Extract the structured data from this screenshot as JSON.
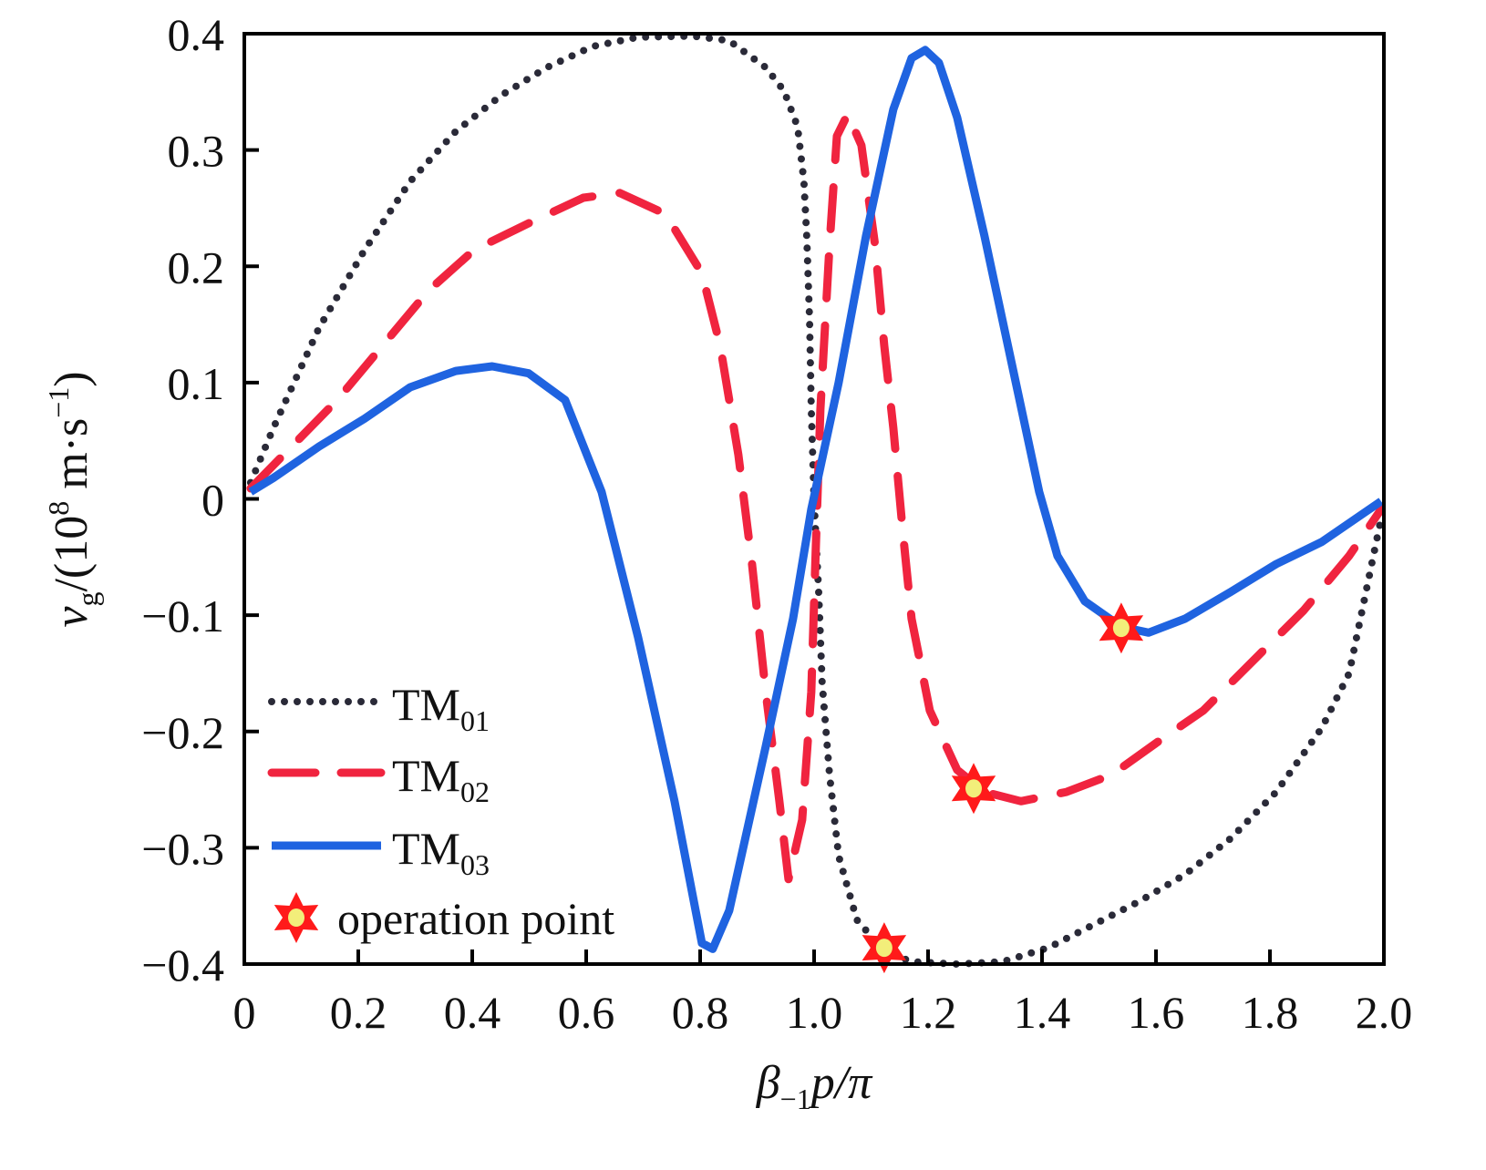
{
  "chart_data": {
    "type": "line",
    "title": "",
    "xlabel_parts": {
      "beta": "β",
      "sub": "−1",
      "rest": "p/π"
    },
    "ylabel_parts": {
      "v": "v",
      "g": "g",
      "mid": "/(10",
      "exp": "8",
      "unit": " m·s",
      "uexp": "−1",
      "close": ")"
    },
    "xlim": [
      0,
      2.0
    ],
    "ylim": [
      -0.4,
      0.4
    ],
    "xticks": [
      "0",
      "0.2",
      "0.4",
      "0.6",
      "0.8",
      "1.0",
      "1.2",
      "1.4",
      "1.6",
      "1.8",
      "2.0"
    ],
    "xtick_values": [
      0,
      0.2,
      0.4,
      0.6,
      0.8,
      1.0,
      1.2,
      1.4,
      1.6,
      1.8,
      2.0
    ],
    "yticks": [
      "0.4",
      "0.3",
      "0.2",
      "0.1",
      "0",
      "−0.1",
      "−0.2",
      "−0.3",
      "−0.4"
    ],
    "ytick_values": [
      0.4,
      0.3,
      0.2,
      0.1,
      0,
      -0.1,
      -0.2,
      -0.3,
      -0.4
    ],
    "grid": false,
    "legend_position": "bottom-left",
    "series": [
      {
        "name": "TM",
        "sub": "01",
        "style": "dotted",
        "color": "#2a2a38",
        "x": [
          0.011,
          0.051,
          0.131,
          0.211,
          0.291,
          0.371,
          0.451,
          0.531,
          0.611,
          0.691,
          0.787,
          0.851,
          0.915,
          0.947,
          0.971,
          0.982,
          0.987,
          0.992,
          0.995,
          1.0,
          1.008,
          1.014,
          1.027,
          1.043,
          1.075,
          1.123,
          1.171,
          1.251,
          1.331,
          1.411,
          1.491,
          1.571,
          1.651,
          1.731,
          1.811,
          1.891,
          1.939,
          1.995
        ],
        "y": [
          0.014,
          0.061,
          0.147,
          0.214,
          0.273,
          0.316,
          0.347,
          0.371,
          0.389,
          0.397,
          0.398,
          0.394,
          0.371,
          0.351,
          0.32,
          0.273,
          0.226,
          0.155,
          0.077,
          -0.002,
          -0.08,
          -0.158,
          -0.237,
          -0.307,
          -0.362,
          -0.389,
          -0.398,
          -0.4,
          -0.398,
          -0.386,
          -0.366,
          -0.346,
          -0.323,
          -0.292,
          -0.252,
          -0.197,
          -0.15,
          -0.017
        ]
      },
      {
        "name": "TM",
        "sub": "02",
        "style": "dashed",
        "color": "#f0243f",
        "x": [
          0.011,
          0.083,
          0.163,
          0.243,
          0.323,
          0.403,
          0.499,
          0.595,
          0.659,
          0.739,
          0.803,
          0.835,
          0.867,
          0.891,
          0.915,
          0.939,
          0.955,
          0.979,
          0.995,
          1.003,
          1.011,
          1.027,
          1.04,
          1.059,
          1.083,
          1.107,
          1.123,
          1.139,
          1.155,
          1.171,
          1.203,
          1.251,
          1.299,
          1.363,
          1.443,
          1.523,
          1.603,
          1.683,
          1.779,
          1.859,
          1.939,
          1.995
        ],
        "y": [
          0.009,
          0.045,
          0.085,
          0.132,
          0.179,
          0.214,
          0.237,
          0.259,
          0.263,
          0.245,
          0.194,
          0.132,
          0.038,
          -0.056,
          -0.166,
          -0.26,
          -0.327,
          -0.276,
          -0.166,
          -0.041,
          0.077,
          0.218,
          0.312,
          0.331,
          0.304,
          0.218,
          0.132,
          0.061,
          -0.025,
          -0.103,
          -0.182,
          -0.233,
          -0.252,
          -0.26,
          -0.252,
          -0.237,
          -0.209,
          -0.182,
          -0.135,
          -0.096,
          -0.049,
          -0.009
        ]
      },
      {
        "name": "TM",
        "sub": "03",
        "style": "solid",
        "color": "#1f63e0",
        "x": [
          0.011,
          0.051,
          0.131,
          0.211,
          0.291,
          0.371,
          0.435,
          0.499,
          0.563,
          0.627,
          0.691,
          0.755,
          0.803,
          0.822,
          0.851,
          0.915,
          0.963,
          0.995,
          1.043,
          1.091,
          1.139,
          1.171,
          1.195,
          1.219,
          1.251,
          1.299,
          1.347,
          1.395,
          1.427,
          1.475,
          1.539,
          1.587,
          1.651,
          1.731,
          1.811,
          1.891,
          1.995
        ],
        "y": [
          0.006,
          0.018,
          0.045,
          0.069,
          0.096,
          0.11,
          0.114,
          0.108,
          0.085,
          0.006,
          -0.119,
          -0.26,
          -0.382,
          -0.387,
          -0.354,
          -0.213,
          -0.103,
          -0.009,
          0.1,
          0.226,
          0.335,
          0.379,
          0.386,
          0.375,
          0.328,
          0.226,
          0.116,
          0.006,
          -0.049,
          -0.088,
          -0.11,
          -0.115,
          -0.103,
          -0.08,
          -0.056,
          -0.037,
          -0.002
        ]
      }
    ],
    "operation_points": {
      "label": "operation point",
      "color": "#ff1a1a",
      "center_color": "#f2ee7a",
      "points": [
        {
          "x": 1.123,
          "y": -0.386
        },
        {
          "x": 1.28,
          "y": -0.249
        },
        {
          "x": 1.539,
          "y": -0.111
        }
      ]
    }
  }
}
